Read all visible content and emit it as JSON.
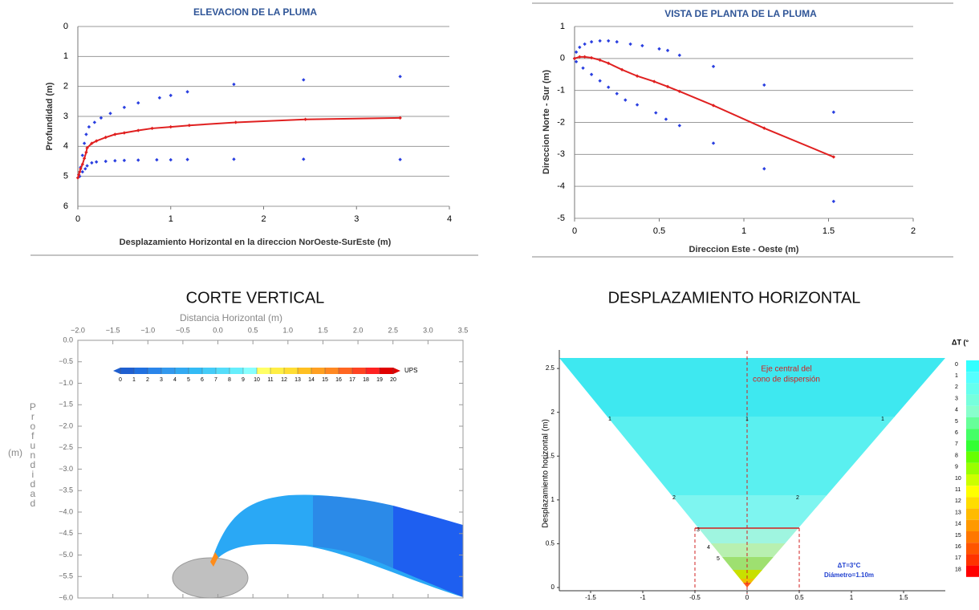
{
  "chart_data": [
    {
      "type": "scatter",
      "title": "ELEVACION DE LA PLUMA",
      "x_label": "Desplazamiento Horizontal en la direccion NorOeste-SurEste (m)",
      "y_label": "Profundidad  (m)",
      "xlim": [
        0,
        4
      ],
      "xticks": [
        0,
        1,
        2,
        3,
        4
      ],
      "ylim": [
        0,
        6
      ],
      "yticks": [
        0,
        1,
        2,
        3,
        4,
        5,
        6
      ],
      "y_inverted": true,
      "grid": true,
      "series": [
        {
          "color": "#2a3fe0",
          "line": false,
          "x": [
            0.01,
            0.03,
            0.05,
            0.07,
            0.09,
            0.12,
            0.18,
            0.25,
            0.35,
            0.5,
            0.65,
            0.88,
            1.0,
            1.18,
            1.68,
            2.43,
            3.47
          ],
          "values": [
            4.95,
            4.7,
            4.3,
            3.9,
            3.6,
            3.35,
            3.2,
            3.05,
            2.9,
            2.7,
            2.55,
            2.38,
            2.3,
            2.18,
            1.93,
            1.78,
            1.67
          ]
        },
        {
          "color": "#2a3fe0",
          "line": false,
          "x": [
            0.02,
            0.05,
            0.08,
            0.1,
            0.15,
            0.2,
            0.3,
            0.4,
            0.5,
            0.65,
            0.85,
            1.0,
            1.18,
            1.68,
            2.43,
            3.47
          ],
          "values": [
            5.0,
            4.85,
            4.75,
            4.65,
            4.55,
            4.52,
            4.5,
            4.48,
            4.47,
            4.46,
            4.45,
            4.45,
            4.44,
            4.43,
            4.43,
            4.44
          ]
        },
        {
          "color": "#e02020",
          "line": true,
          "x": [
            0,
            0.01,
            0.02,
            0.03,
            0.05,
            0.07,
            0.09,
            0.1,
            0.15,
            0.2,
            0.3,
            0.4,
            0.5,
            0.65,
            0.8,
            1.0,
            1.2,
            1.7,
            2.45,
            3.47
          ],
          "values": [
            5.05,
            4.95,
            4.85,
            4.75,
            4.6,
            4.4,
            4.2,
            4.05,
            3.9,
            3.82,
            3.7,
            3.6,
            3.55,
            3.47,
            3.4,
            3.35,
            3.3,
            3.2,
            3.1,
            3.05
          ]
        }
      ]
    },
    {
      "type": "scatter",
      "title": "VISTA DE PLANTA DE LA PLUMA",
      "x_label": "Direccion Este - Oeste (m)",
      "y_label": "Direccion Norte - Sur (m)",
      "xlim": [
        0,
        2
      ],
      "xticks": [
        0,
        0.5,
        1,
        1.5,
        2
      ],
      "ylim": [
        -5,
        1
      ],
      "yticks": [
        1,
        0,
        -1,
        -2,
        -3,
        -4,
        -5
      ],
      "grid": true,
      "series": [
        {
          "color": "#2a3fe0",
          "line": false,
          "x": [
            0,
            0.01,
            0.03,
            0.06,
            0.1,
            0.15,
            0.2,
            0.25,
            0.33,
            0.4,
            0.5,
            0.55,
            0.62,
            0.82,
            1.12,
            1.53
          ],
          "values": [
            0,
            0.2,
            0.35,
            0.45,
            0.52,
            0.55,
            0.55,
            0.52,
            0.45,
            0.4,
            0.3,
            0.25,
            0.1,
            -0.25,
            -0.83,
            -1.68
          ]
        },
        {
          "color": "#2a3fe0",
          "line": false,
          "x": [
            0.01,
            0.05,
            0.1,
            0.15,
            0.2,
            0.25,
            0.3,
            0.37,
            0.48,
            0.54,
            0.62,
            0.82,
            1.12,
            1.53
          ],
          "values": [
            -0.1,
            -0.3,
            -0.5,
            -0.7,
            -0.9,
            -1.1,
            -1.3,
            -1.45,
            -1.7,
            -1.9,
            -2.1,
            -2.65,
            -3.45,
            -4.47
          ]
        },
        {
          "color": "#e02020",
          "line": true,
          "x": [
            0,
            0.03,
            0.06,
            0.1,
            0.15,
            0.2,
            0.28,
            0.37,
            0.47,
            0.55,
            0.62,
            0.82,
            1.12,
            1.53
          ],
          "values": [
            0,
            0.05,
            0.05,
            0.02,
            -0.05,
            -0.15,
            -0.35,
            -0.55,
            -0.72,
            -0.88,
            -1.03,
            -1.47,
            -2.18,
            -3.08
          ]
        }
      ]
    },
    {
      "type": "contour",
      "title": "CORTE VERTICAL",
      "x_label": "Distancia Horizontal (m)",
      "y_label": "Profundidad",
      "y_label_unit": "(m)",
      "x_axis_position": "top",
      "frame": true,
      "xlim": [
        -2,
        3.5
      ],
      "xticks": [
        {
          "value": -2,
          "label": "−2.0"
        },
        {
          "value": -1.5,
          "label": "−1.5"
        },
        {
          "value": -1,
          "label": "−1.0"
        },
        {
          "value": -0.5,
          "label": "−0.5"
        },
        {
          "value": 0,
          "label": "0.0"
        },
        0.5,
        {
          "value": 1,
          "label": "1.0"
        },
        1.5,
        {
          "value": 2,
          "label": "2.0"
        },
        2.5,
        {
          "value": 3,
          "label": "3.0"
        },
        3.5
      ],
      "ylim": [
        -6,
        0
      ],
      "yticks": [
        {
          "value": 0,
          "label": "0.0"
        },
        {
          "value": -0.5,
          "label": "−0.5"
        },
        {
          "value": -1,
          "label": "−1.0"
        },
        {
          "value": -1.5,
          "label": "−1.5"
        },
        {
          "value": -2,
          "label": "−2.0"
        },
        {
          "value": -2.5,
          "label": "−2.5"
        },
        {
          "value": -3,
          "label": "−3.0"
        },
        {
          "value": -3.5,
          "label": "−3.5"
        },
        {
          "value": -4,
          "label": "−4.0"
        },
        {
          "value": -4.5,
          "label": "−4.5"
        },
        {
          "value": -5,
          "label": "−5.0"
        },
        {
          "value": -5.5,
          "label": "−5.5"
        },
        {
          "value": -6,
          "label": "−6.0"
        }
      ],
      "colorbar": {
        "ticks": [
          0,
          1,
          2,
          3,
          4,
          5,
          6,
          7,
          8,
          9,
          10,
          11,
          12,
          13,
          14,
          15,
          16,
          17,
          18,
          19,
          20
        ],
        "label": "UPS",
        "colors": [
          "#1f5fd0",
          "#2070e0",
          "#2a85ea",
          "#3399ee",
          "#33aaf2",
          "#33bbf5",
          "#44ccf8",
          "#55ddfa",
          "#66eefc",
          "#88ffff",
          "#ffff66",
          "#ffee44",
          "#ffdd33",
          "#ffc022",
          "#ffa022",
          "#ff8822",
          "#ff6622",
          "#ff4422",
          "#ff2222",
          "#e00000"
        ]
      }
    },
    {
      "type": "contour",
      "title": "DESPLAZAMIENTO HORIZONTAL",
      "y_label": "Desplazamiento horizontal (m)",
      "x_axis_position": "bottom",
      "frame": false,
      "xlim": [
        -1.8,
        1.9
      ],
      "xticks": [
        -1.5,
        -1,
        -0.5,
        0,
        0.5,
        1,
        1.5
      ],
      "ylim": [
        0,
        2.62
      ],
      "yticks": [
        0,
        0.5,
        1,
        1.5,
        2,
        2.5
      ],
      "annotations": [
        "Eje central del",
        "cono de dispersión",
        "ΔT=3°C",
        "Diámetro=1.10m"
      ],
      "contour_labels": [
        1,
        1,
        1,
        2,
        2,
        3,
        4,
        5
      ],
      "legend_title": "ΔT (°",
      "legend_ticks": [
        0,
        1,
        2,
        3,
        4,
        5,
        6,
        7,
        8,
        9,
        10,
        11,
        12,
        13,
        14,
        15,
        16,
        17,
        18
      ],
      "legend_colors": [
        "#33ffff",
        "#55ffff",
        "#66ffee",
        "#77ffdd",
        "#88ffcc",
        "#66ff99",
        "#44ff66",
        "#33ff33",
        "#66ff00",
        "#99ff00",
        "#ccff00",
        "#ffff00",
        "#ffdd00",
        "#ffbb00",
        "#ff9900",
        "#ff7700",
        "#ff5500",
        "#ff3300",
        "#ff0000"
      ]
    }
  ]
}
